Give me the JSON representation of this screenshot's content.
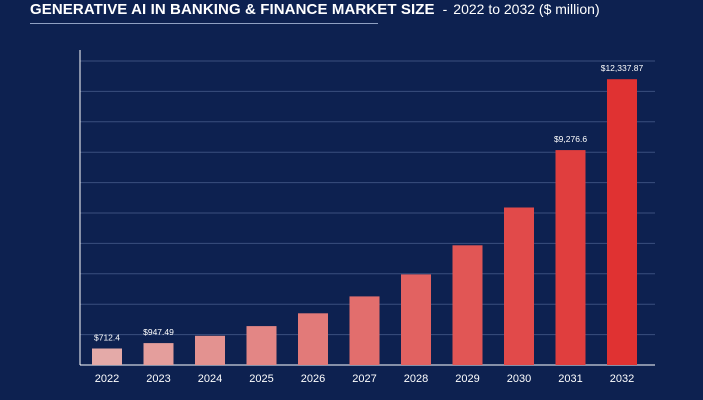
{
  "header": {
    "title": "GENERATIVE AI IN BANKING & FINANCE MARKET SIZE",
    "separator": "-",
    "subtitle": "2022 to 2032 ($ million)"
  },
  "chart_data": {
    "type": "bar",
    "title": "GENERATIVE AI IN BANKING & FINANCE MARKET SIZE",
    "subtitle": "2022 to 2032 ($ million)",
    "categories": [
      "2022",
      "2023",
      "2024",
      "2025",
      "2026",
      "2027",
      "2028",
      "2029",
      "2030",
      "2031",
      "2032"
    ],
    "values": [
      712.4,
      947.49,
      1260,
      1680,
      2230,
      2960,
      3910,
      5170,
      6800,
      9276.6,
      12337.87
    ],
    "data_labels": [
      "$712.4",
      "$947.49",
      "",
      "",
      "",
      "",
      "",
      "",
      "",
      "$9,276.6",
      "$12,337.87"
    ],
    "ylim": [
      0,
      13600
    ],
    "grid": true,
    "legend": "none",
    "bar_color_start": "#e4aaa8",
    "bar_color_end": "#e03232"
  }
}
